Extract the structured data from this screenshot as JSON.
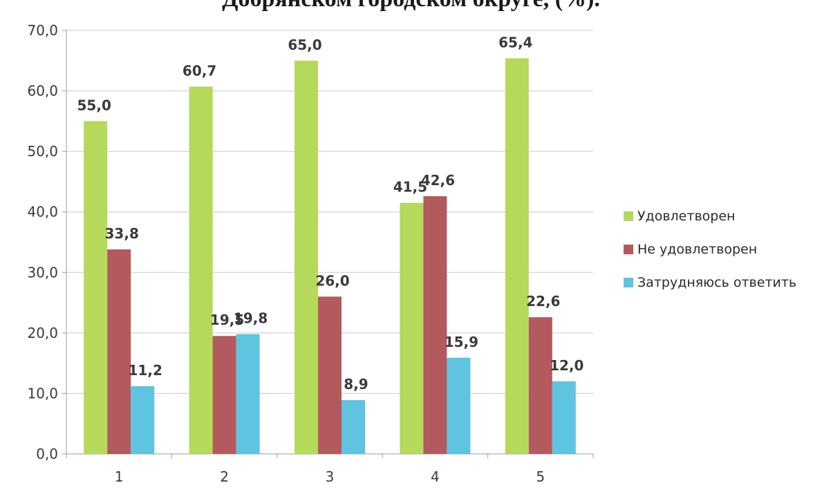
{
  "page": {
    "title": "Добрянском городском округе, (%)."
  },
  "chart_data": {
    "type": "bar",
    "title": "Добрянском городском округе, (%).",
    "xlabel": "",
    "ylabel": "",
    "ylim": [
      0,
      70
    ],
    "yticks": [
      "0,0",
      "10,0",
      "20,0",
      "30,0",
      "40,0",
      "50,0",
      "60,0",
      "70,0"
    ],
    "categories": [
      "1",
      "2",
      "3",
      "4",
      "5"
    ],
    "grid": true,
    "legend_position": "right",
    "series": [
      {
        "name": "Удовлетворен",
        "color": "#b5d95a",
        "values": [
          55.0,
          60.7,
          65.0,
          41.5,
          65.4
        ],
        "labels": [
          "55,0",
          "60,7",
          "65,0",
          "41,5",
          "65,4"
        ]
      },
      {
        "name": "Не удовлетворен",
        "color": "#b35a5e",
        "values": [
          33.8,
          19.5,
          26.0,
          42.6,
          22.6
        ],
        "labels": [
          "33,8",
          "19,5",
          "26,0",
          "42,6",
          "22,6"
        ]
      },
      {
        "name": "Затрудняюсь ответить",
        "color": "#5ec4e0",
        "values": [
          11.2,
          19.8,
          8.9,
          15.9,
          12.0
        ],
        "labels": [
          "11,2",
          "19,8",
          "8,9",
          "15,9",
          "12,0"
        ]
      }
    ]
  }
}
